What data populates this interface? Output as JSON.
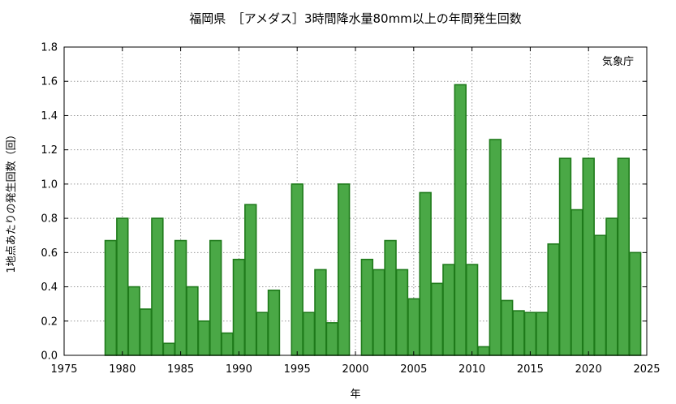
{
  "chart_data": {
    "type": "bar",
    "title": "福岡県　［アメダス］3時間降水量80mm以上の年間発生回数",
    "xlabel": "年",
    "ylabel": "1地点あたりの発生回数（回）",
    "source_label": "気象庁",
    "xlim": [
      1975,
      2025
    ],
    "ylim": [
      0,
      1.8
    ],
    "x_ticks": [
      1975,
      1980,
      1985,
      1990,
      1995,
      2000,
      2005,
      2010,
      2015,
      2020,
      2025
    ],
    "y_ticks": [
      "0.0",
      "0.2",
      "0.4",
      "0.6",
      "0.8",
      "1.0",
      "1.2",
      "1.4",
      "1.6",
      "1.8"
    ],
    "grid": true,
    "colors": {
      "bar_fill": "#4aa846",
      "bar_edge": "#1e7a1a"
    },
    "x": [
      1979,
      1980,
      1981,
      1982,
      1983,
      1984,
      1985,
      1986,
      1987,
      1988,
      1989,
      1990,
      1991,
      1992,
      1993,
      1994,
      1995,
      1996,
      1997,
      1998,
      1999,
      2000,
      2001,
      2002,
      2003,
      2004,
      2005,
      2006,
      2007,
      2008,
      2009,
      2010,
      2011,
      2012,
      2013,
      2014,
      2015,
      2016,
      2017,
      2018,
      2019,
      2020,
      2021,
      2022,
      2023,
      2024
    ],
    "values": [
      0.67,
      0.8,
      0.4,
      0.27,
      0.8,
      0.07,
      0.67,
      0.4,
      0.2,
      0.67,
      0.13,
      0.56,
      0.88,
      0.25,
      0.38,
      0,
      1.0,
      0.25,
      0.5,
      0.19,
      1.0,
      0,
      0.56,
      0.5,
      0.67,
      0.5,
      0.33,
      0.95,
      0.42,
      0.53,
      1.58,
      0.53,
      0.05,
      1.26,
      0.32,
      0.26,
      0.25,
      0.25,
      0.65,
      1.15,
      0.85,
      1.15,
      0.7,
      0.8,
      1.15,
      0.6
    ]
  }
}
